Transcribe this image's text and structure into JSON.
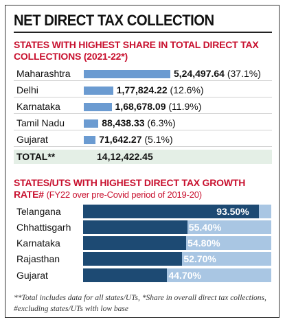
{
  "title": "NET DIRECT TAX COLLECTION",
  "footnote": "**Total includes data for all states/UTs, *Share in overall direct tax collections, #excluding states/UTs with low base",
  "chart_data": [
    {
      "type": "bar",
      "title": "STATES WITH HIGHEST SHARE IN TOTAL DIRECT TAX COLLECTIONS (2021-22*)",
      "categories": [
        "Maharashtra",
        "Delhi",
        "Karnataka",
        "Tamil Nadu",
        "Gujarat"
      ],
      "values": [
        524497.64,
        177824.22,
        168678.09,
        88438.33,
        71642.27
      ],
      "value_labels": [
        "5,24,497.64",
        "1,77,824.22",
        "1,68,678.09",
        "88,438.33",
        "71,642.27"
      ],
      "share_labels": [
        "(37.1%)",
        "(12.6%)",
        "(11.9%)",
        "(6.3%)",
        "(5.1%)"
      ],
      "total_label": "TOTAL**",
      "total_value": "14,12,422.45",
      "color": "#6b9bd1"
    },
    {
      "type": "bar",
      "title": "STATES/UTS WITH HIGHEST DIRECT TAX GROWTH RATE#",
      "subtitle": "(FY22 over pre-Covid period of 2019-20)",
      "categories": [
        "Telangana",
        "Chhattisgarh",
        "Karnataka",
        "Rajasthan",
        "Gujarat"
      ],
      "values": [
        93.5,
        55.4,
        54.8,
        52.7,
        44.7
      ],
      "value_labels": [
        "93.50%",
        "55.40%",
        "54.80%",
        "52.70%",
        "44.70%"
      ],
      "xlim": [
        0,
        100
      ],
      "color": "#1d4a73",
      "background_color": "#a9c6e3"
    }
  ]
}
